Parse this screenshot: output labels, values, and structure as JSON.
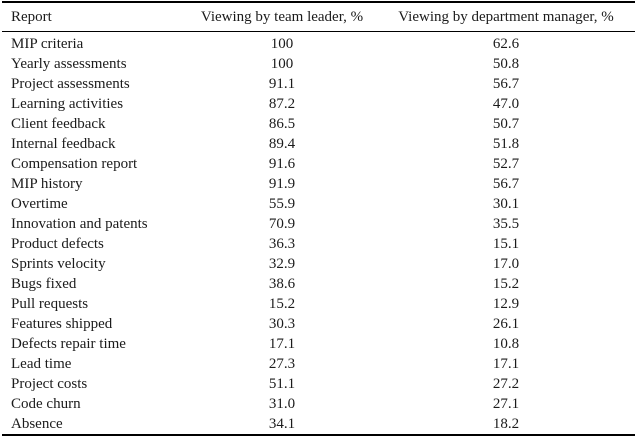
{
  "table": {
    "columns": [
      "Report",
      "Viewing by team leader, %",
      "Viewing by department manager, %"
    ],
    "rows": [
      {
        "report": "MIP criteria",
        "team_leader": "100",
        "department_manager": "62.6"
      },
      {
        "report": "Yearly assessments",
        "team_leader": "100",
        "department_manager": "50.8"
      },
      {
        "report": "Project assessments",
        "team_leader": "91.1",
        "department_manager": "56.7"
      },
      {
        "report": "Learning activities",
        "team_leader": "87.2",
        "department_manager": "47.0"
      },
      {
        "report": "Client feedback",
        "team_leader": "86.5",
        "department_manager": "50.7"
      },
      {
        "report": "Internal feedback",
        "team_leader": "89.4",
        "department_manager": "51.8"
      },
      {
        "report": "Compensation report",
        "team_leader": "91.6",
        "department_manager": "52.7"
      },
      {
        "report": "MIP history",
        "team_leader": "91.9",
        "department_manager": "56.7"
      },
      {
        "report": "Overtime",
        "team_leader": "55.9",
        "department_manager": "30.1"
      },
      {
        "report": "Innovation and patents",
        "team_leader": "70.9",
        "department_manager": "35.5"
      },
      {
        "report": "Product defects",
        "team_leader": "36.3",
        "department_manager": "15.1"
      },
      {
        "report": "Sprints velocity",
        "team_leader": "32.9",
        "department_manager": "17.0"
      },
      {
        "report": "Bugs fixed",
        "team_leader": "38.6",
        "department_manager": "15.2"
      },
      {
        "report": "Pull requests",
        "team_leader": "15.2",
        "department_manager": "12.9"
      },
      {
        "report": "Features shipped",
        "team_leader": "30.3",
        "department_manager": "26.1"
      },
      {
        "report": "Defects repair time",
        "team_leader": "17.1",
        "department_manager": "10.8"
      },
      {
        "report": "Lead time",
        "team_leader": "27.3",
        "department_manager": "17.1"
      },
      {
        "report": "Project costs",
        "team_leader": "51.1",
        "department_manager": "27.2"
      },
      {
        "report": "Code churn",
        "team_leader": "31.0",
        "department_manager": "27.1"
      },
      {
        "report": "Absence",
        "team_leader": "34.1",
        "department_manager": "18.2"
      }
    ]
  },
  "chart_data": {
    "type": "table",
    "title": "",
    "categories": [
      "MIP criteria",
      "Yearly assessments",
      "Project assessments",
      "Learning activities",
      "Client feedback",
      "Internal feedback",
      "Compensation report",
      "MIP history",
      "Overtime",
      "Innovation and patents",
      "Product defects",
      "Sprints velocity",
      "Bugs fixed",
      "Pull requests",
      "Features shipped",
      "Defects repair time",
      "Lead time",
      "Project costs",
      "Code churn",
      "Absence"
    ],
    "series": [
      {
        "name": "Viewing by team leader, %",
        "values": [
          100,
          100,
          91.1,
          87.2,
          86.5,
          89.4,
          91.6,
          91.9,
          55.9,
          70.9,
          36.3,
          32.9,
          38.6,
          15.2,
          30.3,
          17.1,
          27.3,
          51.1,
          31.0,
          34.1
        ]
      },
      {
        "name": "Viewing by department manager, %",
        "values": [
          62.6,
          50.8,
          56.7,
          47.0,
          50.7,
          51.8,
          52.7,
          56.7,
          30.1,
          35.5,
          15.1,
          17.0,
          15.2,
          12.9,
          26.1,
          10.8,
          17.1,
          27.2,
          27.1,
          18.2
        ]
      }
    ]
  },
  "colors": {
    "text": "#1b1b1b",
    "rule": "#000000",
    "background": "#ffffff"
  }
}
